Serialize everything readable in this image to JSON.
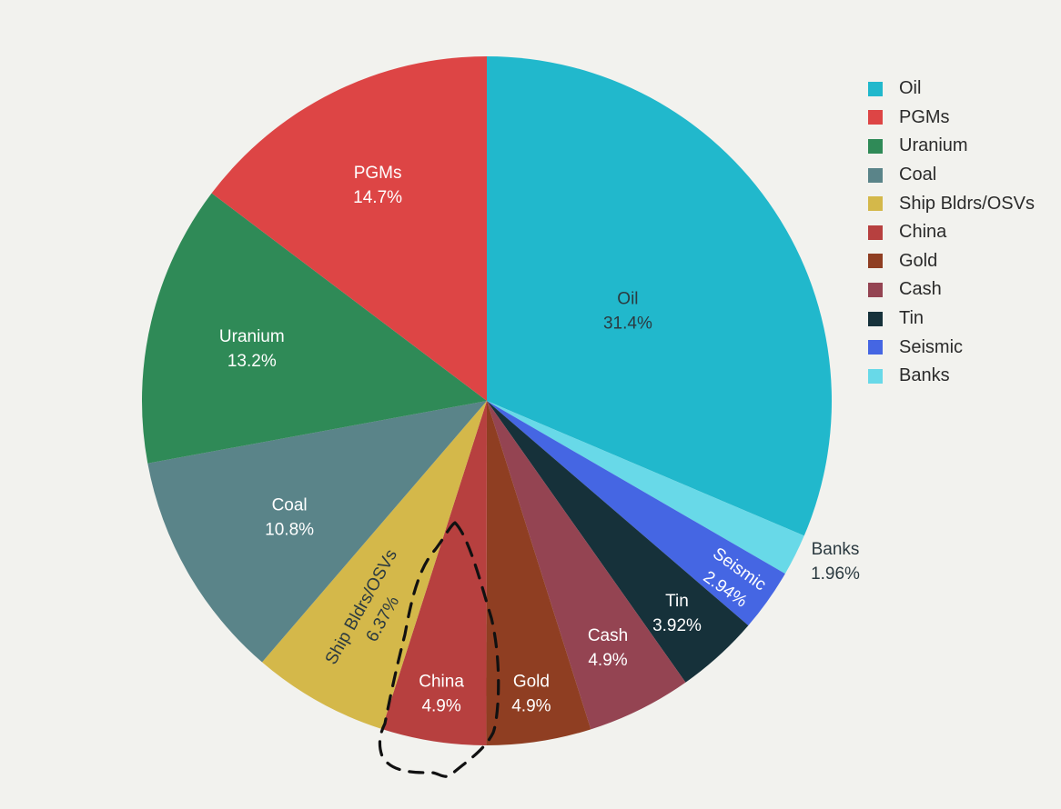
{
  "chart_data": {
    "type": "pie",
    "slices": [
      {
        "label": "Oil",
        "value": 31.4,
        "value_label": "31.4%",
        "color": "#21b8cc"
      },
      {
        "label": "Banks",
        "value": 1.96,
        "value_label": "1.96%",
        "color": "#68d9e8"
      },
      {
        "label": "Seismic",
        "value": 2.94,
        "value_label": "2.94%",
        "color": "#4566e3"
      },
      {
        "label": "Tin",
        "value": 3.92,
        "value_label": "3.92%",
        "color": "#16313a"
      },
      {
        "label": "Cash",
        "value": 4.9,
        "value_label": "4.9%",
        "color": "#944452"
      },
      {
        "label": "Gold",
        "value": 4.9,
        "value_label": "4.9%",
        "color": "#8f3e22"
      },
      {
        "label": "China",
        "value": 4.9,
        "value_label": "4.9%",
        "color": "#b7403f"
      },
      {
        "label": "Ship Bldrs/OSVs",
        "value": 6.37,
        "value_label": "6.37%",
        "color": "#d4b84a"
      },
      {
        "label": "Coal",
        "value": 10.8,
        "value_label": "10.8%",
        "color": "#5a8489"
      },
      {
        "label": "Uranium",
        "value": 13.2,
        "value_label": "13.2%",
        "color": "#2f8a57"
      },
      {
        "label": "PGMs",
        "value": 14.7,
        "value_label": "14.7%",
        "color": "#dd4545"
      }
    ],
    "start_at": "12 o'clock",
    "direction": "clockwise",
    "legend": {
      "placement": "right",
      "entries": [
        "Oil",
        "PGMs",
        "Uranium",
        "Coal",
        "Ship Bldrs/OSVs",
        "China",
        "Gold",
        "Cash",
        "Tin",
        "Seismic",
        "Banks"
      ]
    },
    "annotation": "hand-drawn dashed outline around the China slice"
  },
  "colors": {
    "background": "#f2f2ee",
    "label_light": "#ffffff",
    "label_dark": "#2b3a40",
    "annotation": "#111111"
  }
}
